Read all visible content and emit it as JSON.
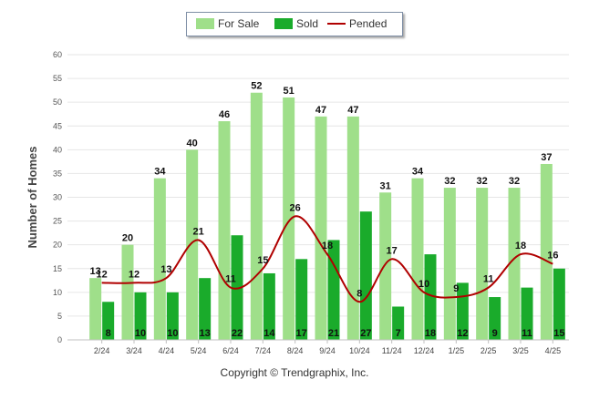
{
  "chart_data": {
    "type": "bar",
    "categories": [
      "2/24",
      "3/24",
      "4/24",
      "5/24",
      "6/24",
      "7/24",
      "8/24",
      "9/24",
      "10/24",
      "11/24",
      "12/24",
      "1/25",
      "2/25",
      "3/25",
      "4/25"
    ],
    "series": [
      {
        "name": "For Sale",
        "type": "bar",
        "color": "#9fdf8a",
        "values": [
          13,
          20,
          34,
          40,
          46,
          52,
          51,
          47,
          47,
          31,
          34,
          32,
          32,
          32,
          37
        ]
      },
      {
        "name": "Sold",
        "type": "bar",
        "color": "#1aab2b",
        "values": [
          8,
          10,
          10,
          13,
          22,
          14,
          17,
          21,
          27,
          7,
          18,
          12,
          9,
          11,
          15
        ]
      },
      {
        "name": "Pended",
        "type": "line",
        "color": "#b00000",
        "values": [
          12,
          12,
          13,
          21,
          11,
          15,
          26,
          18,
          8,
          17,
          10,
          9,
          11,
          18,
          16
        ]
      }
    ],
    "ylabel": "Number of Homes",
    "ylim": [
      0,
      60
    ],
    "yticks": [
      0,
      5,
      10,
      15,
      20,
      25,
      30,
      35,
      40,
      45,
      50,
      55,
      60
    ],
    "grid": true,
    "legend_position": "top-center"
  },
  "legend": {
    "items": [
      {
        "label": "For Sale",
        "color": "#9fdf8a"
      },
      {
        "label": "Sold",
        "color": "#1aab2b"
      },
      {
        "label": "Pended",
        "color": "#b00000"
      }
    ]
  },
  "footer": {
    "copyright": "Copyright © Trendgraphix, Inc."
  }
}
